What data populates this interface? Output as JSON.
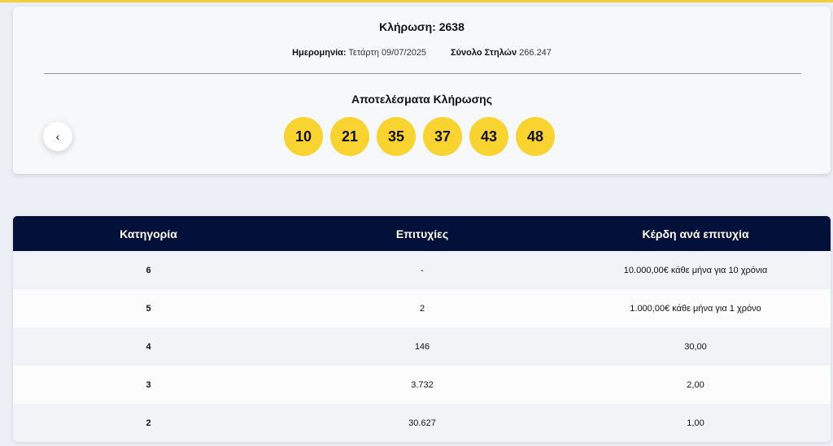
{
  "colors": {
    "accent": "#f9d32f",
    "header_bg": "#03103a"
  },
  "draw": {
    "title": "Κλήρωση: 2638",
    "date_label": "Ημερομηνία:",
    "date_value": "Τετάρτη 09/07/2025",
    "columns_label": "Σύνολο Στηλών",
    "columns_value": "266.247",
    "results_title": "Αποτελέσματα Κλήρωσης",
    "numbers": [
      "10",
      "21",
      "35",
      "37",
      "43",
      "48"
    ],
    "prev_icon": "chevron-left-icon",
    "prev_glyph": "‹"
  },
  "table": {
    "headers": [
      "Κατηγορία",
      "Επιτυχίες",
      "Κέρδη ανά επιτυχία"
    ],
    "rows": [
      [
        "6",
        "-",
        "10.000,00€ κάθε μήνα για 10 χρόνια"
      ],
      [
        "5",
        "2",
        "1.000,00€ κάθε μήνα για 1 χρόνο"
      ],
      [
        "4",
        "146",
        "30,00"
      ],
      [
        "3",
        "3.732",
        "2,00"
      ],
      [
        "2",
        "30.627",
        "1,00"
      ]
    ]
  }
}
